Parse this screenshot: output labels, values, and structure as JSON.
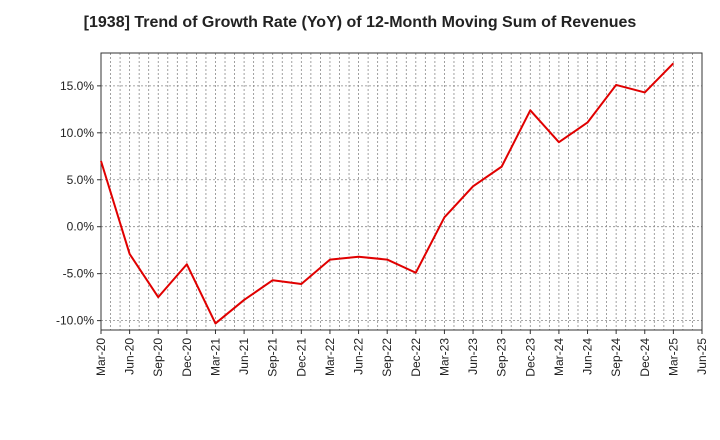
{
  "chart_data": {
    "type": "line",
    "title": "[1938]  Trend of Growth Rate (YoY) of 12-Month Moving Sum of Revenues",
    "xlabel": "",
    "ylabel": "",
    "x_tick_labels": [
      "Mar-20",
      "Jun-20",
      "Sep-20",
      "Dec-20",
      "Mar-21",
      "Jun-21",
      "Sep-21",
      "Dec-21",
      "Mar-22",
      "Jun-22",
      "Sep-22",
      "Dec-22",
      "Mar-23",
      "Jun-23",
      "Sep-23",
      "Dec-23",
      "Mar-24",
      "Jun-24",
      "Sep-24",
      "Dec-24",
      "Mar-25",
      "Jun-25"
    ],
    "y_ticks": [
      -10,
      -5,
      0,
      5,
      10,
      15
    ],
    "y_tick_labels": [
      "-10.0%",
      "-5.0%",
      "0.0%",
      "5.0%",
      "10.0%",
      "15.0%"
    ],
    "ylim": [
      -11,
      18.5
    ],
    "y_unit": "%",
    "grid": true,
    "series": [
      {
        "color": "#e00000",
        "x": [
          "Mar-20",
          "Jun-20",
          "Sep-20",
          "Dec-20",
          "Mar-21",
          "Jun-21",
          "Sep-21",
          "Dec-21",
          "Mar-22",
          "Jun-22",
          "Sep-22",
          "Dec-22",
          "Mar-23",
          "Jun-23",
          "Sep-23",
          "Dec-23",
          "Mar-24",
          "Jun-24",
          "Sep-24",
          "Dec-24",
          "Mar-25"
        ],
        "values": [
          7.0,
          -2.9,
          -7.5,
          -4.0,
          -10.3,
          -7.8,
          -5.7,
          -6.1,
          -3.5,
          -3.2,
          -3.5,
          -4.9,
          1.0,
          4.3,
          6.4,
          12.4,
          9.0,
          11.1,
          15.1,
          14.3,
          17.4
        ]
      }
    ]
  }
}
